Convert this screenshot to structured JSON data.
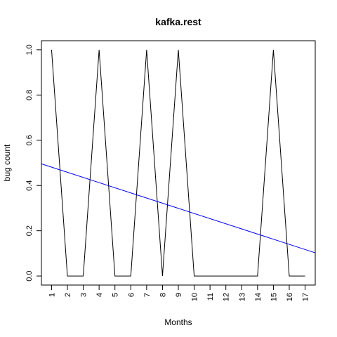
{
  "chart_data": {
    "type": "line",
    "title": "kafka.rest",
    "xlabel": "Months",
    "ylabel": "bug count",
    "x": [
      1,
      2,
      3,
      4,
      5,
      6,
      7,
      8,
      9,
      10,
      11,
      12,
      13,
      14,
      15,
      16,
      17
    ],
    "x_tick_labels": [
      "1",
      "2",
      "3",
      "4",
      "5",
      "6",
      "7",
      "8",
      "9",
      "10",
      "11",
      "12",
      "13",
      "14",
      "15",
      "16",
      "17"
    ],
    "y_tick_labels": [
      "0.0",
      "0.2",
      "0.4",
      "0.6",
      "0.8",
      "1.0"
    ],
    "y_ticks": [
      0,
      0.2,
      0.4,
      0.6,
      0.8,
      1.0
    ],
    "xlim": [
      0.36,
      17.64
    ],
    "ylim": [
      -0.04,
      1.04
    ],
    "grid": false,
    "series": [
      {
        "color": "#000000",
        "values": [
          1,
          0,
          0,
          1,
          0,
          0,
          1,
          0,
          1,
          0,
          0,
          0,
          0,
          0,
          1,
          0,
          0
        ]
      }
    ],
    "trend_line": {
      "color": "#0000ff",
      "intercept": 0.5039,
      "slope": -0.02275
    }
  }
}
